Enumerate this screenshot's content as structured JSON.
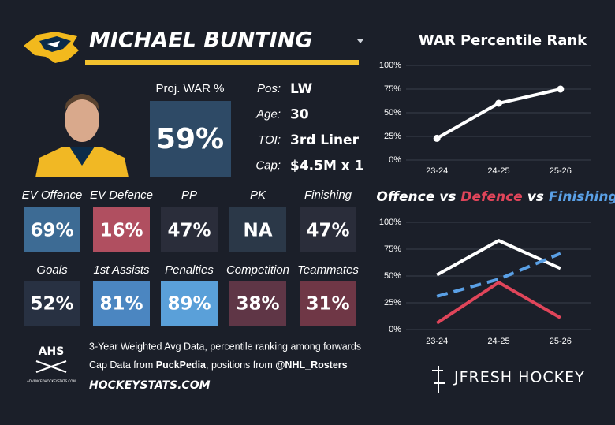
{
  "player": {
    "name": "MICHAEL BUNTING",
    "proj_war_label": "Proj. WAR %",
    "proj_war": "59%",
    "info": [
      {
        "label": "Pos:",
        "value": "LW"
      },
      {
        "label": "Age:",
        "value": "30"
      },
      {
        "label": "TOI:",
        "value": "3rd Liner"
      },
      {
        "label": "Cap:",
        "value": "$4.5M x 1"
      }
    ]
  },
  "tiles": [
    {
      "label": "EV Offence",
      "value": "69%",
      "color": "#3d6b94"
    },
    {
      "label": "EV Defence",
      "value": "16%",
      "color": "#b04f60"
    },
    {
      "label": "PP",
      "value": "47%",
      "color": "#2a2d3a"
    },
    {
      "label": "PK",
      "value": "NA",
      "color": "#2b3848"
    },
    {
      "label": "Finishing",
      "value": "47%",
      "color": "#2a2d3a"
    },
    {
      "label": "Goals",
      "value": "52%",
      "color": "#283142"
    },
    {
      "label": "1st Assists",
      "value": "81%",
      "color": "#4b86c1"
    },
    {
      "label": "Penalties",
      "value": "89%",
      "color": "#5aa0d9"
    },
    {
      "label": "Competition",
      "value": "38%",
      "color": "#5f3646"
    },
    {
      "label": "Teammates",
      "value": "31%",
      "color": "#6f3746"
    }
  ],
  "footer": {
    "note": "3-Year Weighted Avg Data, percentile ranking among forwards",
    "sources": [
      "Cap Data from ",
      "PuckPedia",
      ", positions from ",
      "@NHL_Rosters"
    ],
    "site": "HOCKEYSTATS.COM",
    "ahs_logo": "AHS",
    "ahs_site": "ADVANCEDHOCKEYSTATS.COM",
    "brand": "JFRESH HOCKEY"
  },
  "chart_data": [
    {
      "type": "line",
      "title": "WAR Percentile Rank",
      "categories": [
        "23-24",
        "24-25",
        "25-26"
      ],
      "series": [
        {
          "color": "#ffffff",
          "values": [
            23,
            60,
            75
          ]
        }
      ],
      "markers": true,
      "ylim": [
        0,
        100
      ],
      "yticks": [
        {
          "value": 0,
          "label": "0%"
        },
        {
          "value": 25,
          "label": "25%"
        },
        {
          "value": 50,
          "label": "50%"
        },
        {
          "value": 75,
          "label": "75%"
        },
        {
          "value": 100,
          "label": "100%"
        }
      ],
      "grid": true
    },
    {
      "type": "line",
      "legend_separator": "vs",
      "categories": [
        "23-24",
        "24-25",
        "25-26"
      ],
      "series": [
        {
          "name": "Offence",
          "color": "#ffffff",
          "values": [
            51,
            83,
            57
          ]
        },
        {
          "name": "Defence",
          "color": "#e0455a",
          "values": [
            6,
            44,
            11
          ]
        },
        {
          "name": "Finishing",
          "color": "#5aa0e6",
          "values": [
            31,
            47,
            71
          ],
          "dashed": true
        }
      ],
      "markers": false,
      "ylim": [
        0,
        100
      ],
      "yticks": [
        {
          "value": 0,
          "label": "0%"
        },
        {
          "value": 25,
          "label": "25%"
        },
        {
          "value": 50,
          "label": "50%"
        },
        {
          "value": 75,
          "label": "75%"
        },
        {
          "value": 100,
          "label": "100%"
        }
      ],
      "grid": true
    }
  ]
}
